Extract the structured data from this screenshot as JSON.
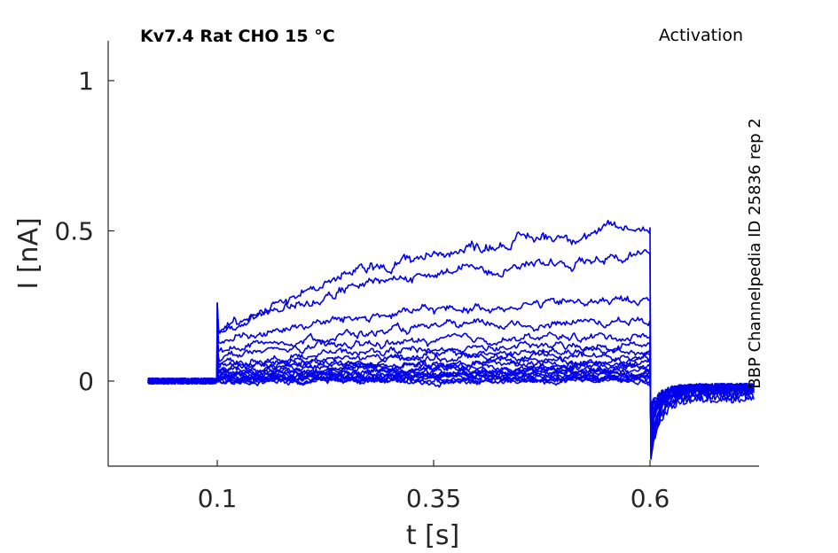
{
  "chart_data": {
    "type": "line",
    "title": "Kv7.4  Rat  CHO  15 °C",
    "protocol_label": "Activation",
    "side_label": "BBP Channelpedia ID 25836 rep 2",
    "xlabel": "t [s]",
    "ylabel": "I [nA]",
    "xlim": [
      -0.0,
      0.75
    ],
    "ylim": [
      -0.28,
      1.13
    ],
    "xticks": [
      0.1,
      0.35,
      0.6
    ],
    "xtick_labels": [
      "0.1",
      "0.35",
      "0.6"
    ],
    "yticks": [
      0,
      0.5,
      1
    ],
    "ytick_labels": [
      "0",
      "0.5",
      "1"
    ],
    "grid": false,
    "line_color": "#0000ee",
    "protocol": {
      "t_start": 0.02,
      "step_on": 0.1,
      "step_off": 0.6,
      "t_end": 0.72
    },
    "series": [
      {
        "start": 0.0,
        "end": 0.0,
        "tail": -0.02
      },
      {
        "start": 0.002,
        "end": 0.004,
        "tail": -0.02
      },
      {
        "start": 0.004,
        "end": 0.008,
        "tail": -0.02
      },
      {
        "start": 0.006,
        "end": 0.012,
        "tail": -0.02
      },
      {
        "start": 0.008,
        "end": 0.016,
        "tail": -0.02
      },
      {
        "start": 0.01,
        "end": 0.02,
        "tail": -0.02
      },
      {
        "start": 0.012,
        "end": 0.025,
        "tail": -0.02
      },
      {
        "start": 0.015,
        "end": 0.03,
        "tail": -0.02
      },
      {
        "start": 0.018,
        "end": 0.035,
        "tail": -0.02
      },
      {
        "start": 0.02,
        "end": 0.04,
        "tail": -0.02
      },
      {
        "start": 0.025,
        "end": 0.05,
        "tail": -0.02
      },
      {
        "start": 0.03,
        "end": 0.06,
        "tail": -0.02
      },
      {
        "start": 0.035,
        "end": 0.07,
        "tail": -0.025
      },
      {
        "start": 0.04,
        "end": 0.085,
        "tail": -0.025
      },
      {
        "start": 0.05,
        "end": 0.1,
        "tail": -0.03
      },
      {
        "start": 0.06,
        "end": 0.12,
        "tail": -0.03
      },
      {
        "start": 0.08,
        "end": 0.15,
        "tail": -0.03
      },
      {
        "start": 0.1,
        "end": 0.2,
        "tail": -0.04
      },
      {
        "start": 0.13,
        "end": 0.27,
        "tail": -0.04
      },
      {
        "start": 0.16,
        "end": 0.42,
        "tail": -0.05
      },
      {
        "start": 0.16,
        "end": 0.51,
        "tail": -0.06
      }
    ]
  }
}
